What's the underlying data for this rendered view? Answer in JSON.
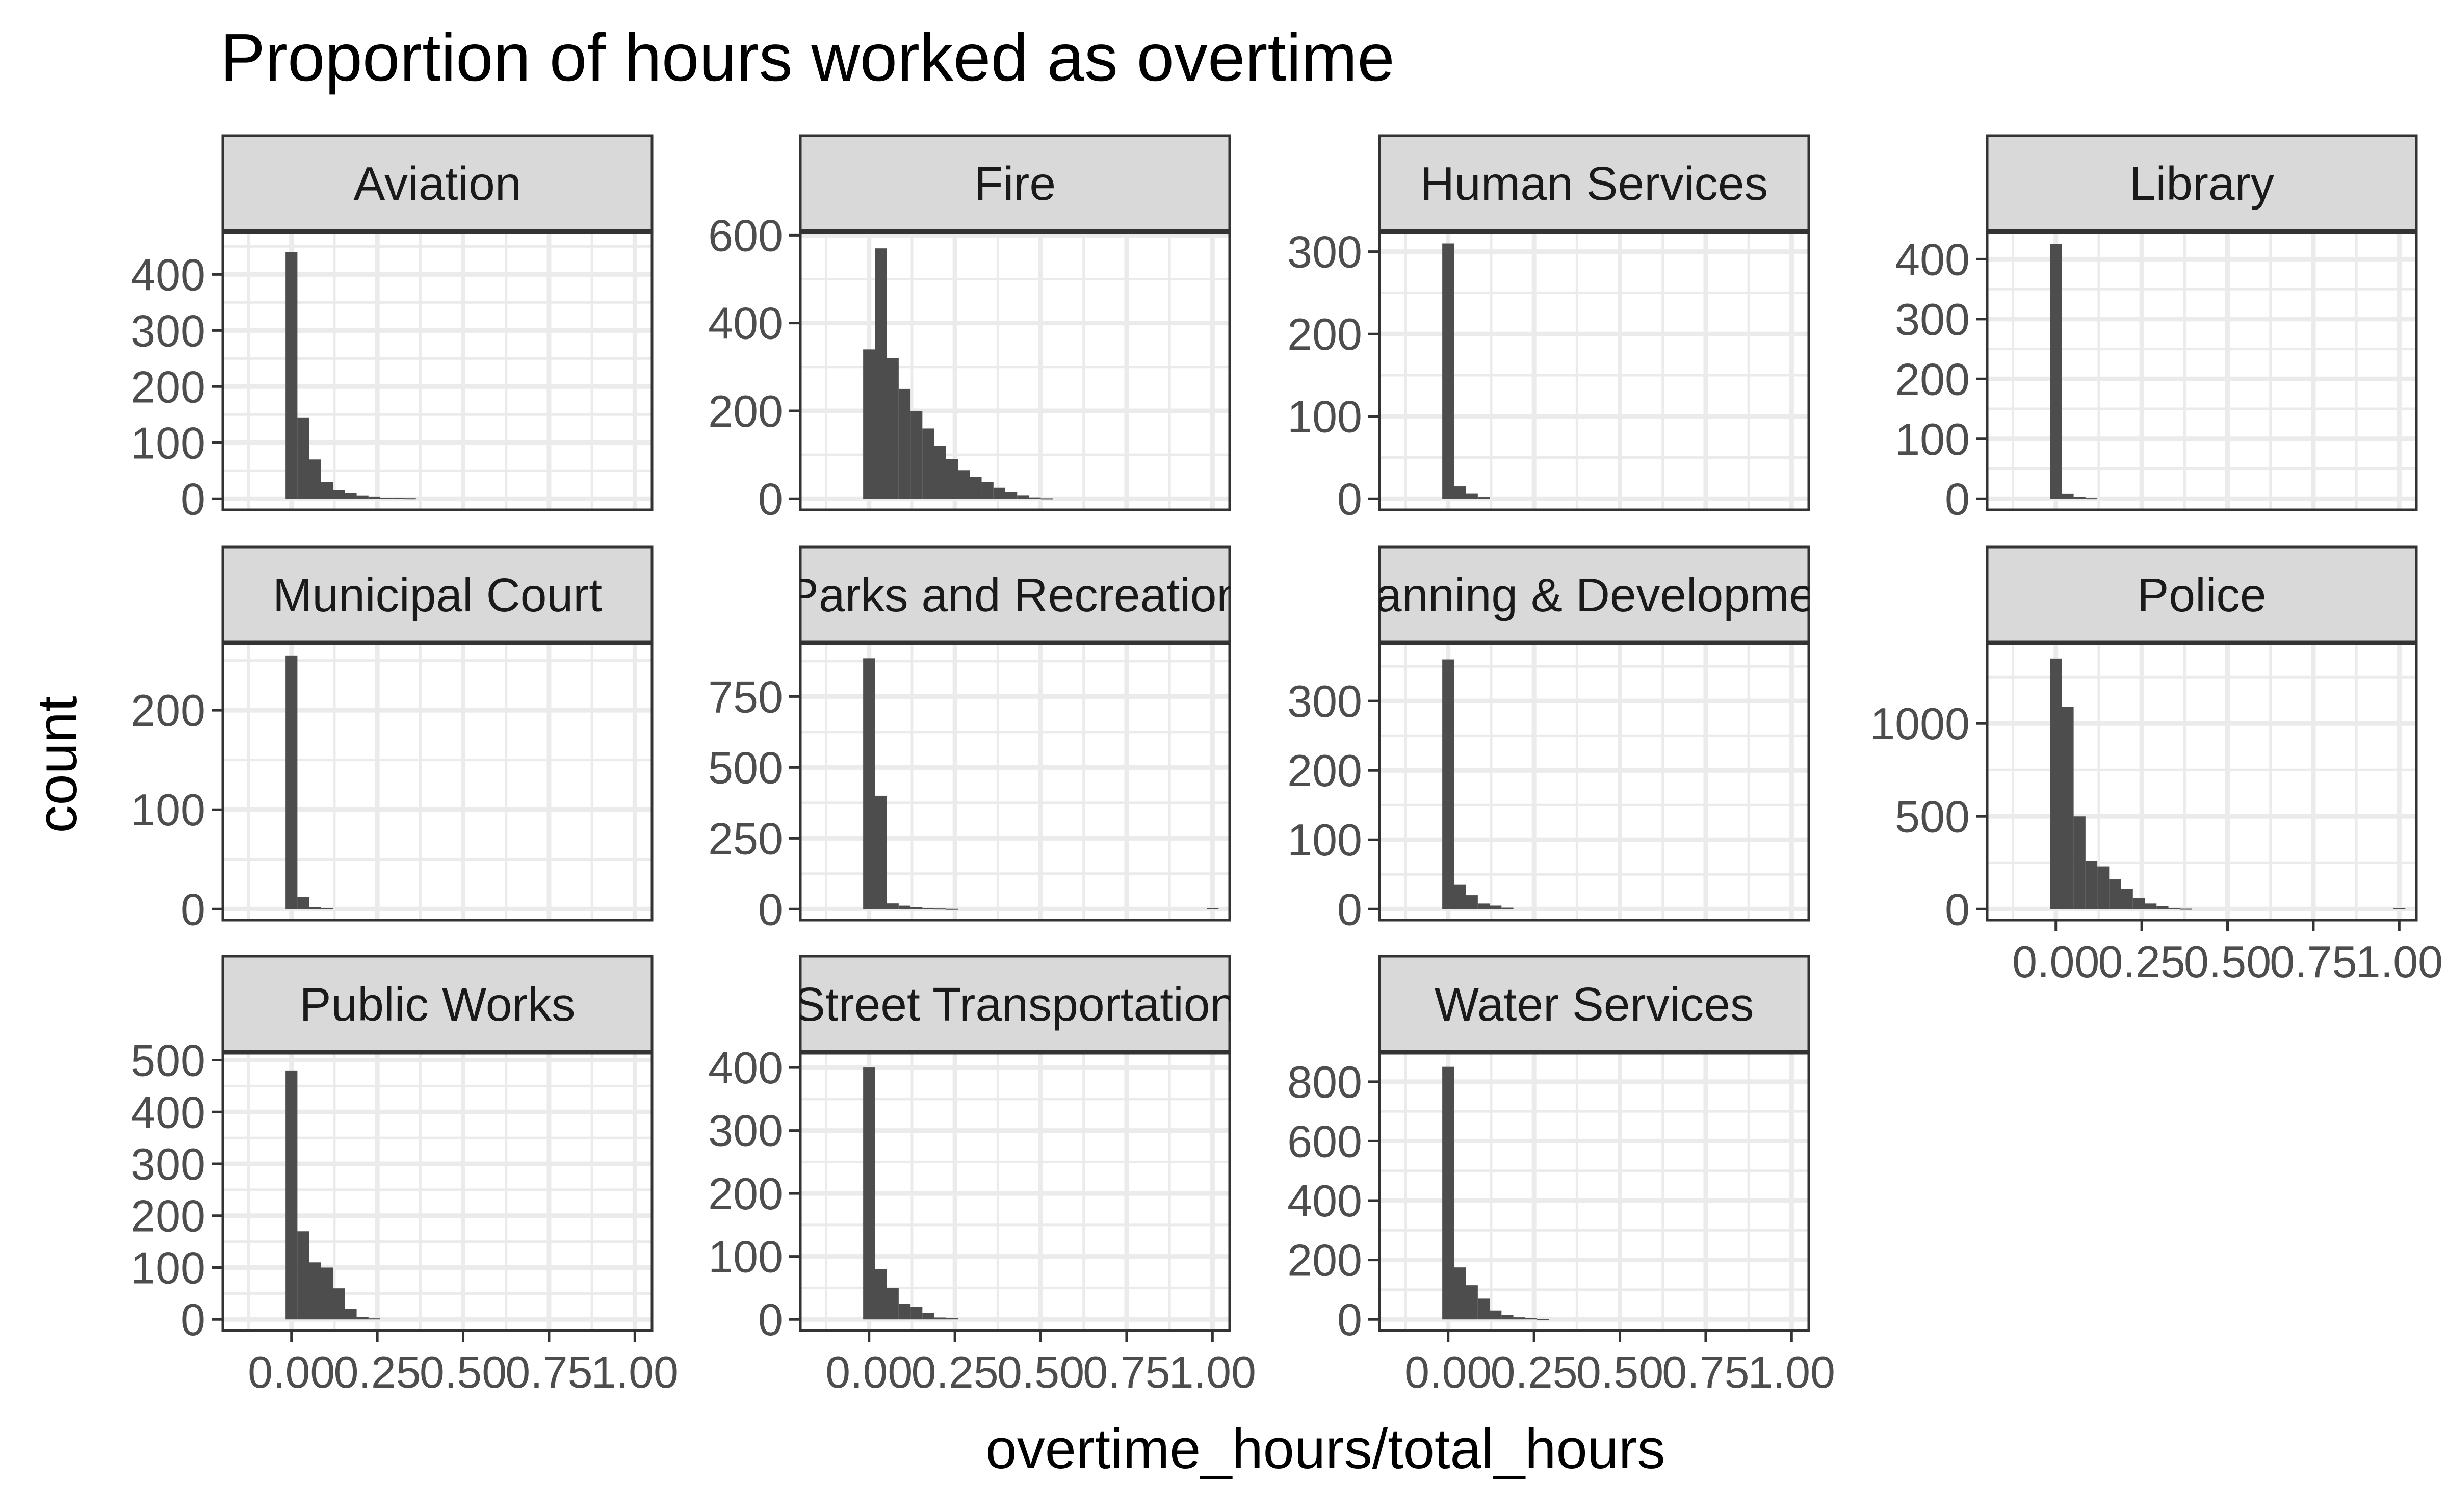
{
  "chart_data": {
    "type": "bar",
    "title": "Proportion of hours worked as overtime",
    "xlabel": "overtime_hours/total_hours",
    "ylabel": "count",
    "xlim": [
      -0.2,
      1.05
    ],
    "x_ticks": [
      0.0,
      0.25,
      0.5,
      0.75,
      1.0
    ],
    "x_tick_labels": [
      "0.00",
      "0.25",
      "0.50",
      "0.75",
      "1.00"
    ],
    "bin_width": 0.0345,
    "bin_start": -0.0172,
    "bar_color": "#4d4d4d",
    "grid": true,
    "strip_fill": "#d9d9d9",
    "panels": [
      {
        "name": "Aviation",
        "ylim": [
          0,
          470
        ],
        "y_ticks": [
          0,
          100,
          200,
          300,
          400
        ],
        "counts": [
          440,
          145,
          70,
          30,
          15,
          10,
          6,
          4,
          2,
          2,
          1,
          0,
          0,
          0,
          0,
          0,
          0,
          0,
          0,
          0,
          0,
          0,
          0,
          0,
          0,
          0,
          0,
          0,
          0,
          0
        ]
      },
      {
        "name": "Fire",
        "ylim": [
          0,
          600
        ],
        "y_ticks": [
          0,
          200,
          400,
          600
        ],
        "counts": [
          340,
          570,
          320,
          250,
          200,
          160,
          120,
          90,
          65,
          50,
          38,
          25,
          15,
          8,
          3,
          1,
          0,
          0,
          0,
          0,
          0,
          0,
          0,
          0,
          0,
          0,
          0,
          0,
          0,
          0
        ]
      },
      {
        "name": "Human Services",
        "ylim": [
          0,
          320
        ],
        "y_ticks": [
          0,
          100,
          200,
          300
        ],
        "counts": [
          310,
          15,
          6,
          2,
          0,
          0,
          0,
          0,
          0,
          0,
          0,
          0,
          0,
          0,
          0,
          0,
          0,
          0,
          0,
          0,
          0,
          0,
          0,
          0,
          0,
          0,
          0,
          0,
          0,
          0
        ]
      },
      {
        "name": "Library",
        "ylim": [
          0,
          440
        ],
        "y_ticks": [
          0,
          100,
          200,
          300,
          400
        ],
        "counts": [
          425,
          8,
          3,
          1,
          0,
          0,
          0,
          0,
          0,
          0,
          0,
          0,
          0,
          0,
          0,
          0,
          0,
          0,
          0,
          0,
          0,
          0,
          0,
          0,
          0,
          0,
          0,
          0,
          0,
          0
        ]
      },
      {
        "name": "Municipal Court",
        "ylim": [
          0,
          265
        ],
        "y_ticks": [
          0,
          100,
          200
        ],
        "counts": [
          255,
          12,
          2,
          1,
          0,
          0,
          0,
          0,
          0,
          0,
          0,
          0,
          0,
          0,
          0,
          0,
          0,
          0,
          0,
          0,
          0,
          0,
          0,
          0,
          0,
          0,
          0,
          0,
          0,
          0
        ]
      },
      {
        "name": "Parks and Recreation",
        "ylim": [
          0,
          930
        ],
        "y_ticks": [
          0,
          250,
          500,
          750
        ],
        "counts": [
          885,
          400,
          20,
          12,
          6,
          3,
          2,
          1,
          0,
          0,
          0,
          0,
          0,
          0,
          0,
          0,
          0,
          0,
          0,
          0,
          0,
          0,
          0,
          0,
          0,
          0,
          0,
          0,
          0,
          4
        ]
      },
      {
        "name": "Planning & Development",
        "ylim": [
          0,
          380
        ],
        "y_ticks": [
          0,
          100,
          200,
          300
        ],
        "counts": [
          360,
          35,
          20,
          8,
          5,
          2,
          0,
          0,
          0,
          0,
          0,
          0,
          0,
          0,
          0,
          0,
          0,
          0,
          0,
          0,
          0,
          0,
          0,
          0,
          0,
          0,
          0,
          0,
          0,
          0
        ]
      },
      {
        "name": "Police",
        "ylim": [
          0,
          1420
        ],
        "y_ticks": [
          0,
          500,
          1000
        ],
        "counts": [
          1350,
          1090,
          500,
          260,
          230,
          160,
          110,
          60,
          30,
          15,
          5,
          2,
          0,
          0,
          0,
          0,
          0,
          0,
          0,
          0,
          0,
          0,
          0,
          0,
          0,
          0,
          0,
          0,
          0,
          5
        ]
      },
      {
        "name": "Public Works",
        "ylim": [
          0,
          510
        ],
        "y_ticks": [
          0,
          100,
          200,
          300,
          400,
          500
        ],
        "counts": [
          480,
          170,
          110,
          100,
          60,
          20,
          5,
          2,
          0,
          0,
          0,
          0,
          0,
          0,
          0,
          0,
          0,
          0,
          0,
          0,
          0,
          0,
          0,
          0,
          0,
          0,
          0,
          0,
          0,
          0
        ]
      },
      {
        "name": "Street Transportation",
        "ylim": [
          0,
          420
        ],
        "y_ticks": [
          0,
          100,
          200,
          300,
          400
        ],
        "counts": [
          400,
          80,
          50,
          25,
          20,
          10,
          3,
          2,
          0,
          0,
          0,
          0,
          0,
          0,
          0,
          0,
          0,
          0,
          0,
          0,
          0,
          0,
          0,
          0,
          0,
          0,
          0,
          0,
          0,
          0
        ]
      },
      {
        "name": "Water Services",
        "ylim": [
          0,
          890
        ],
        "y_ticks": [
          0,
          200,
          400,
          600,
          800
        ],
        "counts": [
          850,
          175,
          115,
          70,
          30,
          15,
          7,
          4,
          2,
          0,
          0,
          0,
          0,
          0,
          0,
          0,
          0,
          0,
          0,
          0,
          0,
          0,
          0,
          0,
          0,
          0,
          0,
          0,
          0,
          0
        ]
      }
    ]
  }
}
